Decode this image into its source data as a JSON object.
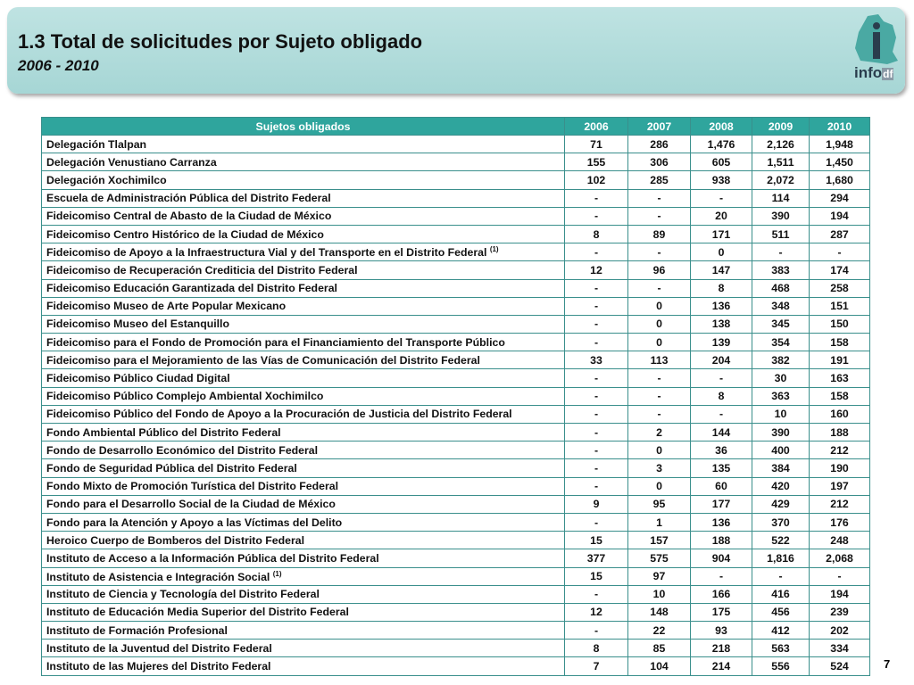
{
  "header": {
    "title": "1.3 Total de solicitudes por Sujeto obligado",
    "subtitle": "2006 - 2010"
  },
  "logo": {
    "main": "info",
    "suffix": "df"
  },
  "table": {
    "columns": [
      "Sujetos obligados",
      "2006",
      "2007",
      "2008",
      "2009",
      "2010"
    ],
    "rows": [
      {
        "name": "Delegación Tlalpan",
        "values": [
          "71",
          "286",
          "1,476",
          "2,126",
          "1,948"
        ]
      },
      {
        "name": "Delegación Venustiano Carranza",
        "values": [
          "155",
          "306",
          "605",
          "1,511",
          "1,450"
        ]
      },
      {
        "name": "Delegación Xochimilco",
        "values": [
          "102",
          "285",
          "938",
          "2,072",
          "1,680"
        ]
      },
      {
        "name": "Escuela de Administración Pública del Distrito Federal",
        "values": [
          "-",
          "-",
          "-",
          "114",
          "294"
        ]
      },
      {
        "name": "Fideicomiso Central de Abasto de la Ciudad de México",
        "values": [
          "-",
          "-",
          "20",
          "390",
          "194"
        ]
      },
      {
        "name": "Fideicomiso Centro Histórico de la Ciudad de México",
        "values": [
          "8",
          "89",
          "171",
          "511",
          "287"
        ]
      },
      {
        "name": "Fideicomiso de Apoyo a la Infraestructura Vial y del Transporte en el Distrito Federal",
        "note": "(1)",
        "values": [
          "-",
          "-",
          "0",
          "-",
          "-"
        ]
      },
      {
        "name": "Fideicomiso de Recuperación Crediticia del Distrito Federal",
        "values": [
          "12",
          "96",
          "147",
          "383",
          "174"
        ]
      },
      {
        "name": "Fideicomiso Educación Garantizada del Distrito Federal",
        "values": [
          "-",
          "-",
          "8",
          "468",
          "258"
        ]
      },
      {
        "name": "Fideicomiso Museo de Arte Popular Mexicano",
        "values": [
          "-",
          "0",
          "136",
          "348",
          "151"
        ]
      },
      {
        "name": "Fideicomiso Museo del Estanquillo",
        "values": [
          "-",
          "0",
          "138",
          "345",
          "150"
        ]
      },
      {
        "name": "Fideicomiso para el Fondo de Promoción para el Financiamiento del Transporte Público",
        "values": [
          "-",
          "0",
          "139",
          "354",
          "158"
        ]
      },
      {
        "name": "Fideicomiso para el Mejoramiento de las Vías de Comunicación del Distrito Federal",
        "values": [
          "33",
          "113",
          "204",
          "382",
          "191"
        ]
      },
      {
        "name": "Fideicomiso Público Ciudad Digital",
        "values": [
          "-",
          "-",
          "-",
          "30",
          "163"
        ]
      },
      {
        "name": "Fideicomiso Público Complejo Ambiental Xochimilco",
        "values": [
          "-",
          "-",
          "8",
          "363",
          "158"
        ]
      },
      {
        "name": "Fideicomiso Público del Fondo de Apoyo a la Procuración de Justicia del Distrito Federal",
        "values": [
          "-",
          "-",
          "-",
          "10",
          "160"
        ]
      },
      {
        "name": "Fondo Ambiental Público del Distrito Federal",
        "values": [
          "-",
          "2",
          "144",
          "390",
          "188"
        ]
      },
      {
        "name": "Fondo de Desarrollo Económico del Distrito Federal",
        "values": [
          "-",
          "0",
          "36",
          "400",
          "212"
        ]
      },
      {
        "name": "Fondo de Seguridad Pública del Distrito Federal",
        "values": [
          "-",
          "3",
          "135",
          "384",
          "190"
        ]
      },
      {
        "name": "Fondo Mixto de Promoción Turística del Distrito Federal",
        "values": [
          "-",
          "0",
          "60",
          "420",
          "197"
        ]
      },
      {
        "name": "Fondo para el Desarrollo Social de la Ciudad de México",
        "values": [
          "9",
          "95",
          "177",
          "429",
          "212"
        ]
      },
      {
        "name": "Fondo para la Atención y Apoyo a las Víctimas del Delito",
        "values": [
          "-",
          "1",
          "136",
          "370",
          "176"
        ]
      },
      {
        "name": "Heroico Cuerpo de Bomberos del Distrito Federal",
        "values": [
          "15",
          "157",
          "188",
          "522",
          "248"
        ]
      },
      {
        "name": "Instituto de Acceso a la Información Pública del Distrito Federal",
        "values": [
          "377",
          "575",
          "904",
          "1,816",
          "2,068"
        ]
      },
      {
        "name": "Instituto de Asistencia e Integración Social",
        "note": "(1)",
        "values": [
          "15",
          "97",
          "-",
          "-",
          "-"
        ]
      },
      {
        "name": "Instituto de Ciencia y Tecnología del Distrito Federal",
        "values": [
          "-",
          "10",
          "166",
          "416",
          "194"
        ]
      },
      {
        "name": "Instituto de Educación Media Superior del Distrito Federal",
        "values": [
          "12",
          "148",
          "175",
          "456",
          "239"
        ]
      },
      {
        "name": "Instituto de Formación Profesional",
        "values": [
          "-",
          "22",
          "93",
          "412",
          "202"
        ]
      },
      {
        "name": "Instituto de la Juventud del Distrito Federal",
        "values": [
          "8",
          "85",
          "218",
          "563",
          "334"
        ]
      },
      {
        "name": "Instituto de las Mujeres del Distrito Federal",
        "values": [
          "7",
          "104",
          "214",
          "556",
          "524"
        ]
      }
    ]
  },
  "page_number": "7"
}
